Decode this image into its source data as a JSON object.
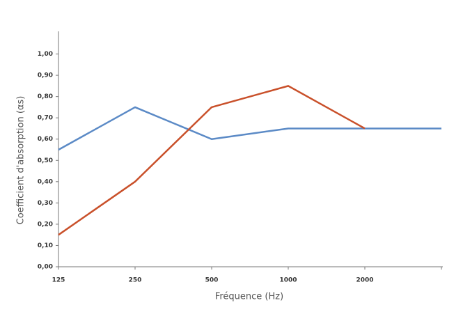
{
  "chart_data": {
    "type": "line",
    "x_label": "Fréquence (Hz)",
    "y_label": "Coefficient d'absorption (αs)",
    "categories": [
      "125",
      "250",
      "500",
      "1000",
      "2000",
      null
    ],
    "series": [
      {
        "color": "#5b8ac6",
        "values": [
          0.55,
          0.75,
          0.6,
          0.65,
          0.65,
          0.65
        ]
      },
      {
        "color": "#c9502a",
        "values": [
          0.15,
          0.4,
          0.75,
          0.85,
          0.65,
          null
        ]
      }
    ],
    "ylim": [
      0,
      1.1
    ],
    "yticks": [
      {
        "value": 0,
        "label": "0,00"
      },
      {
        "value": 0.1,
        "label": "0,10"
      },
      {
        "value": 0.2,
        "label": "0,20"
      },
      {
        "value": 0.3,
        "label": "0,30"
      },
      {
        "value": 0.4,
        "label": "0,40"
      },
      {
        "value": 0.5,
        "label": "0,50"
      },
      {
        "value": 0.6,
        "label": "0,60"
      },
      {
        "value": 0.7,
        "label": "0,70"
      },
      {
        "value": 0.8,
        "label": "0,80"
      },
      {
        "value": 0.9,
        "label": "0,90"
      },
      {
        "value": 1.0,
        "label": "1,00"
      }
    ]
  }
}
